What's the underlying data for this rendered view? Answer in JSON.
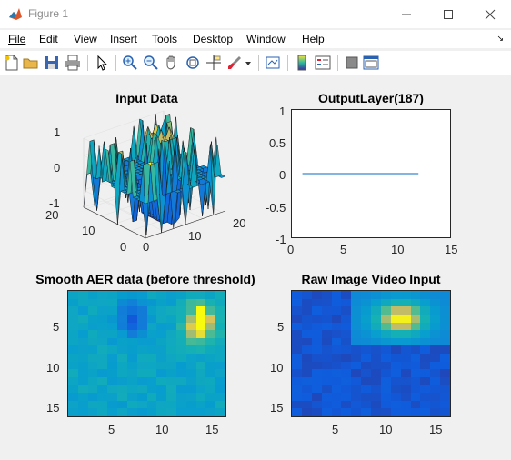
{
  "window": {
    "title": "Figure 1"
  },
  "menu": [
    "File",
    "Edit",
    "View",
    "Insert",
    "Tools",
    "Desktop",
    "Window",
    "Help"
  ],
  "toolbar": [
    "new-figure",
    "open-file",
    "save",
    "print",
    "pointer",
    "zoom-in",
    "zoom-out",
    "pan",
    "rotate-3d",
    "data-cursor",
    "brush",
    "link-plot",
    "colorbar",
    "legend",
    "hide-plot-tools",
    "show-plot-tools"
  ],
  "plots": {
    "input": {
      "title": "Input Data",
      "z_ticks": [
        "1",
        "0",
        "-1"
      ],
      "y_ticks": [
        "20",
        "10",
        "0"
      ],
      "x_ticks": [
        "0",
        "10",
        "20"
      ]
    },
    "output": {
      "title": "OutputLayer(187)",
      "y_ticks": [
        "1",
        "0.5",
        "0",
        "-0.5",
        "-1"
      ],
      "x_ticks": [
        "0",
        "5",
        "10",
        "15"
      ]
    },
    "smooth": {
      "title": "Smooth AER data (before threshold)",
      "y_ticks": [
        "5",
        "10",
        "15"
      ],
      "x_ticks": [
        "5",
        "10",
        "15"
      ]
    },
    "raw": {
      "title": "Raw Image Video Input",
      "y_ticks": [
        "5",
        "10",
        "15"
      ],
      "x_ticks": [
        "5",
        "10",
        "15"
      ]
    }
  },
  "chart_data": [
    {
      "type": "line",
      "title": "OutputLayer(187)",
      "series": [
        {
          "x": [
            1,
            2,
            3,
            4,
            5,
            6,
            7,
            8,
            9,
            10,
            11,
            12
          ],
          "values": [
            0,
            0,
            0,
            0,
            0,
            0,
            0,
            0,
            0,
            0,
            0,
            0
          ]
        }
      ],
      "xlim": [
        0,
        15
      ],
      "ylim": [
        -1,
        1
      ],
      "color": "#5b9bd5"
    }
  ],
  "colors": {
    "axis": "#262626",
    "line": "#5b9bd5"
  }
}
